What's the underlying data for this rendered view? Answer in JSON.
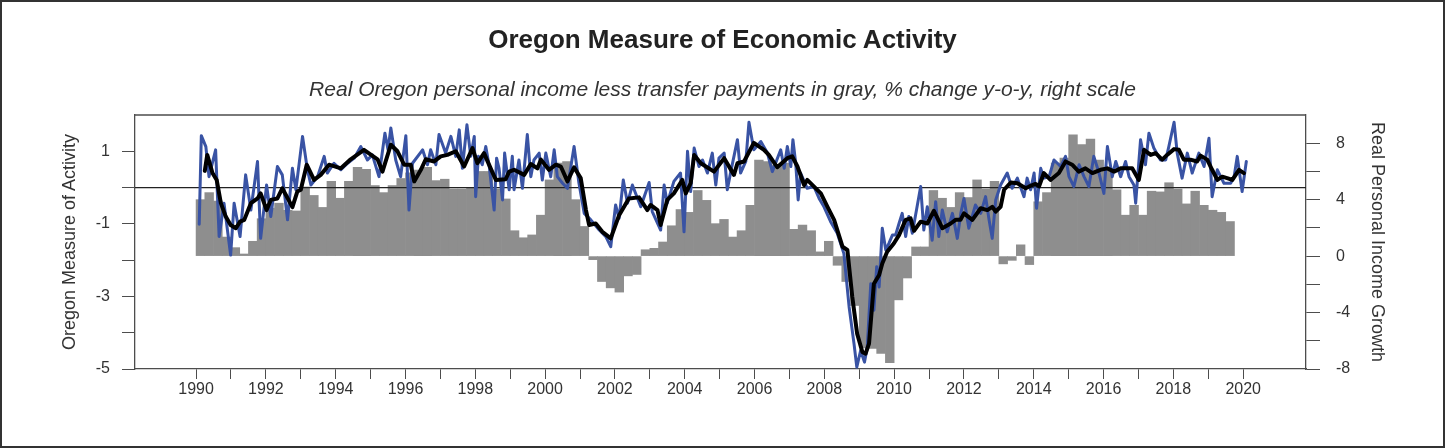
{
  "chart_data": {
    "type": "line",
    "title": "Oregon Measure of Economic Activity",
    "subtitle": "Real Oregon personal income less transfer payments in gray, % change y-o-y, right scale",
    "ylabel": "Oregon Measure of Activity",
    "y2label": "Real Personal Income Growth",
    "xlim": [
      1988.25,
      2021.8
    ],
    "xticks": [
      1990,
      {
        "value": 1991,
        "label": null
      },
      1992,
      {
        "value": 1993,
        "label": null
      },
      1994,
      {
        "value": 1995,
        "label": null
      },
      1996,
      {
        "value": 1997,
        "label": null
      },
      1998,
      {
        "value": 1999,
        "label": null
      },
      2000,
      {
        "value": 2001,
        "label": null
      },
      2002,
      {
        "value": 2003,
        "label": null
      },
      2004,
      {
        "value": 2005,
        "label": null
      },
      2006,
      {
        "value": 2007,
        "label": null
      },
      2008,
      {
        "value": 2009,
        "label": null
      },
      2010,
      {
        "value": 2011,
        "label": null
      },
      2012,
      {
        "value": 2013,
        "label": null
      },
      2014,
      {
        "value": 2015,
        "label": null
      },
      2016,
      {
        "value": 2017,
        "label": null
      },
      2018,
      {
        "value": 2019,
        "label": null
      },
      2020
    ],
    "ylim": [
      -5,
      2
    ],
    "yticks": [
      -5,
      {
        "value": -4,
        "label": null
      },
      -3,
      {
        "value": -2,
        "label": null
      },
      -1,
      {
        "value": 0,
        "label": null
      },
      1
    ],
    "y2lim": [
      -8,
      10
    ],
    "y2ticks": [
      -8,
      {
        "value": -6,
        "label": null
      },
      -4,
      {
        "value": -2,
        "label": null
      },
      0,
      {
        "value": 2,
        "label": null
      },
      4,
      {
        "value": 6,
        "label": null
      },
      8
    ],
    "marker": "none",
    "ref_lines": [
      {
        "axis": "y",
        "value": 0,
        "color": "#222222"
      }
    ],
    "series": [
      {
        "type": "bar",
        "axis": "y2",
        "color": "#8e8e8e",
        "x": [
          1990.125,
          1990.375,
          1990.625,
          1990.875,
          1991.125,
          1991.375,
          1991.625,
          1991.875,
          1992.125,
          1992.375,
          1992.625,
          1992.875,
          1993.125,
          1993.375,
          1993.625,
          1993.875,
          1994.125,
          1994.375,
          1994.625,
          1994.875,
          1995.125,
          1995.375,
          1995.625,
          1995.875,
          1996.125,
          1996.375,
          1996.625,
          1996.875,
          1997.125,
          1997.375,
          1997.625,
          1997.875,
          1998.125,
          1998.375,
          1998.625,
          1998.875,
          1999.125,
          1999.375,
          1999.625,
          1999.875,
          2000.125,
          2000.375,
          2000.625,
          2000.875,
          2001.125,
          2001.375,
          2001.625,
          2001.875,
          2002.125,
          2002.375,
          2002.625,
          2002.875,
          2003.125,
          2003.375,
          2003.625,
          2003.875,
          2004.125,
          2004.375,
          2004.625,
          2004.875,
          2005.125,
          2005.375,
          2005.625,
          2005.875,
          2006.125,
          2006.375,
          2006.625,
          2006.875,
          2007.125,
          2007.375,
          2007.625,
          2007.875,
          2008.125,
          2008.375,
          2008.625,
          2008.875,
          2009.125,
          2009.375,
          2009.625,
          2009.875,
          2010.125,
          2010.375,
          2010.625,
          2010.875,
          2011.125,
          2011.375,
          2011.625,
          2011.875,
          2012.125,
          2012.375,
          2012.625,
          2012.875,
          2013.125,
          2013.375,
          2013.625,
          2013.875,
          2014.125,
          2014.375,
          2014.625,
          2014.875,
          2015.125,
          2015.375,
          2015.625,
          2015.875,
          2016.125,
          2016.375,
          2016.625,
          2016.875,
          2017.125,
          2017.375,
          2017.625,
          2017.875,
          2018.125,
          2018.375,
          2018.625,
          2018.875,
          2019.125,
          2019.375,
          2019.625
        ],
        "values": [
          4.0,
          4.5,
          3.9,
          1.35,
          0.6,
          0.15,
          1.05,
          2.65,
          3.4,
          3.75,
          3.25,
          3.2,
          4.9,
          4.3,
          3.45,
          5.3,
          4.1,
          5.3,
          6.3,
          6.15,
          5.0,
          4.5,
          5.0,
          5.5,
          5.9,
          6.1,
          6.3,
          5.35,
          5.45,
          4.75,
          4.75,
          4.8,
          6.0,
          6.0,
          4.75,
          4.05,
          1.8,
          1.3,
          1.5,
          2.9,
          5.4,
          6.6,
          6.7,
          4.0,
          2.1,
          -0.25,
          -1.8,
          -2.25,
          -2.55,
          -1.4,
          -1.3,
          0.45,
          0.55,
          1.0,
          2.15,
          3.3,
          3.1,
          4.65,
          3.95,
          2.3,
          2.6,
          1.35,
          1.8,
          3.6,
          6.8,
          6.7,
          6.45,
          6.6,
          1.9,
          2.2,
          1.8,
          0.3,
          1.05,
          -0.65,
          -1.8,
          -3.5,
          -6.5,
          -6.55,
          -6.9,
          -7.55,
          -3.1,
          -1.55,
          0.65,
          0.65,
          4.65,
          4.1,
          3.45,
          4.5,
          4.15,
          5.4,
          4.75,
          5.3,
          -0.55,
          -0.3,
          0.8,
          -0.6,
          3.85,
          4.5,
          6.6,
          6.95,
          8.6,
          7.9,
          8.3,
          6.8,
          6.2,
          4.7,
          2.9,
          3.6,
          2.9,
          4.6,
          4.55,
          5.2,
          4.75,
          3.7,
          4.6,
          3.6,
          3.25,
          3.1,
          2.45
        ]
      },
      {
        "color": "#3953a4",
        "x": [
          1990.09,
          1990.15,
          1990.28,
          1990.37,
          1990.56,
          1990.66,
          1990.8,
          1990.99,
          1991.09,
          1991.26,
          1991.42,
          1991.57,
          1991.76,
          1991.85,
          1992.02,
          1992.14,
          1992.33,
          1992.47,
          1992.62,
          1992.76,
          1992.86,
          1993.05,
          1993.19,
          1993.29,
          1993.48,
          1993.67,
          1993.76,
          1993.95,
          1994.15,
          1994.34,
          1994.53,
          1994.72,
          1994.91,
          1995.05,
          1995.24,
          1995.41,
          1995.5,
          1995.58,
          1995.72,
          1995.86,
          1996.01,
          1996.1,
          1996.2,
          1996.49,
          1996.63,
          1996.72,
          1996.87,
          1996.96,
          1997.15,
          1997.3,
          1997.44,
          1997.54,
          1997.63,
          1997.76,
          1997.87,
          1997.97,
          1998.01,
          1998.09,
          1998.2,
          1998.3,
          1998.4,
          1998.54,
          1998.61,
          1998.68,
          1998.78,
          1998.84,
          1998.97,
          1999.06,
          1999.11,
          1999.25,
          1999.35,
          1999.49,
          1999.59,
          1999.68,
          1999.83,
          1999.92,
          2000.02,
          2000.16,
          2000.26,
          2000.35,
          2000.5,
          2000.64,
          2000.83,
          2000.97,
          2001.12,
          2001.31,
          2001.55,
          2001.74,
          2001.88,
          2002.02,
          2002.12,
          2002.24,
          2002.36,
          2002.5,
          2002.74,
          2002.98,
          2003.07,
          2003.31,
          2003.41,
          2003.5,
          2003.69,
          2003.88,
          2003.98,
          2004.08,
          2004.17,
          2004.27,
          2004.41,
          2004.51,
          2004.65,
          2004.79,
          2004.89,
          2004.98,
          2005.13,
          2005.22,
          2005.32,
          2005.51,
          2005.6,
          2005.75,
          2005.84,
          2005.98,
          2006.18,
          2006.37,
          2006.51,
          2006.75,
          2006.85,
          2006.94,
          2007.04,
          2007.1,
          2007.18,
          2007.25,
          2007.32,
          2007.51,
          2007.7,
          2007.85,
          2007.99,
          2008.18,
          2008.37,
          2008.56,
          2008.71,
          2008.85,
          2008.93,
          2009.04,
          2009.15,
          2009.23,
          2009.33,
          2009.42,
          2009.5,
          2009.57,
          2009.66,
          2009.76,
          2009.85,
          2009.95,
          2010.04,
          2010.14,
          2010.23,
          2010.33,
          2010.42,
          2010.52,
          2010.64,
          2010.76,
          2010.85,
          2010.95,
          2011.09,
          2011.19,
          2011.28,
          2011.38,
          2011.52,
          2011.67,
          2011.81,
          2011.91,
          2012.0,
          2012.14,
          2012.33,
          2012.48,
          2012.62,
          2012.72,
          2012.81,
          2012.91,
          2013.05,
          2013.24,
          2013.38,
          2013.53,
          2013.72,
          2013.81,
          2013.91,
          2014.01,
          2014.08,
          2014.2,
          2014.29,
          2014.44,
          2014.58,
          2014.77,
          2014.91,
          2015.01,
          2015.15,
          2015.3,
          2015.44,
          2015.58,
          2015.72,
          2015.87,
          2016.01,
          2016.11,
          2016.25,
          2016.35,
          2016.49,
          2016.63,
          2016.73,
          2016.87,
          2016.92,
          2017.06,
          2017.2,
          2017.3,
          2017.44,
          2017.63,
          2017.78,
          2017.87,
          2018.02,
          2018.11,
          2018.25,
          2018.4,
          2018.54,
          2018.73,
          2018.88,
          2019.02,
          2019.11,
          2019.26,
          2019.45,
          2019.64,
          2019.74,
          2019.83,
          2019.97,
          2020.09
        ],
        "values": [
          -1.01,
          1.43,
          1.13,
          0.3,
          1.04,
          -1.35,
          -0.43,
          -1.86,
          -0.43,
          -1.35,
          0.35,
          -0.62,
          0.72,
          -1.4,
          0.07,
          -0.8,
          0.58,
          0.35,
          -0.89,
          0.53,
          -0.06,
          1.41,
          0.49,
          0.07,
          0.3,
          0.86,
          0.4,
          0.67,
          0.49,
          0.67,
          0.81,
          1.13,
          0.76,
          0.9,
          0.3,
          1.5,
          1.04,
          1.64,
          0.76,
          0.3,
          1.43,
          -0.62,
          0.67,
          1.04,
          0.63,
          1.04,
          0.63,
          1.46,
          0.95,
          1.41,
          0.86,
          1.59,
          0.53,
          1.73,
          0.86,
          1.41,
          -0.25,
          0.86,
          0.63,
          1.13,
          0.58,
          -0.62,
          0.81,
          0.53,
          -0.34,
          0.95,
          -0.06,
          0.86,
          -0.06,
          0.76,
          -0.02,
          1.46,
          0.3,
          0.76,
          0.95,
          0.21,
          0.95,
          0.3,
          1.04,
          0.3,
          0.12,
          -0.02,
          1.13,
          0.12,
          -0.71,
          -0.89,
          -1.17,
          -1.35,
          -1.63,
          -0.48,
          -0.85,
          0.21,
          -0.43,
          0.07,
          -0.53,
          0.14,
          -0.66,
          -1.17,
          0.07,
          -0.43,
          0.17,
          0.4,
          -1.22,
          1.0,
          -0.11,
          1.09,
          0.58,
          0.76,
          0.4,
          0.95,
          0.07,
          0.81,
          0.95,
          -0.06,
          0.44,
          1.32,
          0.4,
          0.72,
          1.8,
          1.04,
          1.27,
          0.95,
          0.44,
          1.04,
          0.53,
          1.13,
          0.58,
          1.32,
          0.67,
          -0.34,
          0.4,
          -0.02,
          0.03,
          -0.3,
          -0.53,
          -0.94,
          -1.26,
          -1.82,
          -3.29,
          -4.3,
          -4.95,
          -4.49,
          -4.81,
          -4.4,
          -2.65,
          -3.38,
          -2.18,
          -2.74,
          -1.12,
          -1.72,
          -1.54,
          -1.31,
          -1.31,
          -0.99,
          -0.71,
          -1.35,
          -0.8,
          -1.26,
          -0.62,
          0.03,
          -1.17,
          -0.53,
          -1.45,
          -0.39,
          -1.35,
          -0.62,
          -1.22,
          -0.71,
          -1.4,
          -0.71,
          -0.3,
          -1.12,
          -0.48,
          -0.71,
          -0.25,
          -0.89,
          -1.4,
          -0.34,
          0.07,
          0.4,
          -0.02,
          0.26,
          -0.25,
          0.26,
          -0.06,
          0.4,
          -0.57,
          0.53,
          0.26,
          0.3,
          0.76,
          0.58,
          0.86,
          0.3,
          0.03,
          0.63,
          0.3,
          0.03,
          0.86,
          0.4,
          -0.16,
          1.13,
          0.3,
          0.72,
          0.3,
          0.72,
          0.3,
          0.07,
          -0.43,
          1.32,
          0.63,
          1.5,
          1.09,
          0.76,
          0.76,
          1.13,
          1.8,
          0.95,
          0.26,
          0.95,
          0.4,
          0.95,
          0.58,
          1.36,
          -0.25,
          0.49,
          0.12,
          0.12,
          0.3,
          0.86,
          -0.11,
          0.72
        ]
      },
      {
        "color": "#000000",
        "x": [
          1990.25,
          1990.32,
          1990.47,
          1990.59,
          1990.71,
          1990.85,
          1990.99,
          1991.14,
          1991.26,
          1991.38,
          1991.57,
          1991.76,
          1991.85,
          1992.02,
          1992.14,
          1992.33,
          1992.47,
          1992.76,
          1992.9,
          1993.0,
          1993.17,
          1993.38,
          1993.57,
          1993.81,
          1994.15,
          1994.43,
          1994.81,
          1995.2,
          1995.34,
          1995.58,
          1995.77,
          1995.96,
          1996.15,
          1996.25,
          1996.44,
          1996.58,
          1996.82,
          1997.01,
          1997.2,
          1997.44,
          1997.68,
          1997.92,
          1998.06,
          1998.25,
          1998.44,
          1998.59,
          1998.87,
          1998.97,
          1999.11,
          1999.4,
          1999.59,
          1999.78,
          1999.88,
          2000.11,
          2000.31,
          2000.45,
          2000.64,
          2000.83,
          2001.02,
          2001.17,
          2001.26,
          2001.45,
          2001.64,
          2001.88,
          2002.12,
          2002.4,
          2002.69,
          2002.93,
          2003.02,
          2003.22,
          2003.31,
          2003.5,
          2003.69,
          2003.93,
          2004.03,
          2004.17,
          2004.27,
          2004.46,
          2004.84,
          2005.13,
          2005.41,
          2005.51,
          2005.7,
          2005.98,
          2006.27,
          2006.41,
          2006.65,
          2006.94,
          2007.08,
          2007.23,
          2007.42,
          2007.51,
          2007.9,
          2008.09,
          2008.28,
          2008.52,
          2008.66,
          2008.8,
          2008.94,
          2009.09,
          2009.18,
          2009.28,
          2009.42,
          2009.57,
          2009.66,
          2009.8,
          2009.99,
          2010.14,
          2010.33,
          2010.47,
          2010.57,
          2010.76,
          2010.95,
          2011.14,
          2011.38,
          2011.62,
          2011.76,
          2011.9,
          2012.0,
          2012.24,
          2012.48,
          2012.67,
          2012.81,
          2012.91,
          2013.05,
          2013.15,
          2013.34,
          2013.53,
          2013.77,
          2013.91,
          2014.05,
          2014.15,
          2014.29,
          2014.48,
          2014.72,
          2014.91,
          2015.1,
          2015.29,
          2015.48,
          2015.68,
          2015.91,
          2016.11,
          2016.3,
          2016.49,
          2016.68,
          2016.82,
          2017.01,
          2017.16,
          2017.35,
          2017.49,
          2017.68,
          2017.82,
          2018.02,
          2018.16,
          2018.3,
          2018.49,
          2018.68,
          2018.78,
          2018.97,
          2019.11,
          2019.26,
          2019.4,
          2019.54,
          2019.69,
          2019.88,
          2020.02
        ],
        "values": [
          0.46,
          0.9,
          0.4,
          0.21,
          -0.43,
          -0.8,
          -1.03,
          -1.12,
          -0.94,
          -0.89,
          -0.43,
          -0.3,
          -0.16,
          -0.62,
          -0.34,
          -0.3,
          -0.02,
          -0.54,
          -0.11,
          -0.06,
          0.63,
          0.21,
          0.35,
          0.63,
          0.53,
          0.78,
          1.04,
          0.78,
          0.44,
          1.18,
          1.0,
          0.63,
          0.63,
          0.17,
          0.49,
          0.78,
          0.72,
          0.86,
          0.9,
          1.0,
          0.58,
          1.09,
          0.67,
          0.95,
          0.53,
          0.21,
          0.23,
          0.44,
          0.49,
          0.35,
          0.65,
          0.53,
          0.77,
          0.49,
          0.63,
          0.58,
          0.17,
          0.56,
          0.26,
          -0.62,
          -1.03,
          -0.99,
          -1.22,
          -1.4,
          -0.76,
          -0.3,
          -0.27,
          -0.62,
          -0.48,
          -0.62,
          -1.03,
          -0.34,
          -0.16,
          0.21,
          -0.16,
          0.12,
          0.9,
          0.67,
          0.44,
          0.81,
          0.35,
          0.67,
          0.72,
          1.23,
          1.04,
          0.9,
          0.56,
          0.81,
          0.86,
          0.58,
          0.07,
          0.21,
          -0.16,
          -0.53,
          -0.89,
          -1.63,
          -1.72,
          -3.01,
          -4.03,
          -4.53,
          -4.58,
          -4.3,
          -2.65,
          -2.41,
          -2.09,
          -1.77,
          -1.54,
          -1.31,
          -0.89,
          -0.85,
          -1.19,
          -0.94,
          -0.99,
          -0.64,
          -1.12,
          -0.99,
          -0.89,
          -0.89,
          -0.71,
          -0.89,
          -0.57,
          -0.62,
          -0.53,
          -0.66,
          -0.53,
          -0.06,
          0.14,
          0.12,
          -0.02,
          0.05,
          0.1,
          0.03,
          0.4,
          0.21,
          0.4,
          0.72,
          0.63,
          0.44,
          0.53,
          0.4,
          0.49,
          0.53,
          0.44,
          0.53,
          0.53,
          0.53,
          0.21,
          1.04,
          0.9,
          0.95,
          0.77,
          0.9,
          1.06,
          1.04,
          0.77,
          0.77,
          0.72,
          0.88,
          0.77,
          0.49,
          0.21,
          0.3,
          0.26,
          0.21,
          0.49,
          0.4
        ]
      }
    ]
  }
}
